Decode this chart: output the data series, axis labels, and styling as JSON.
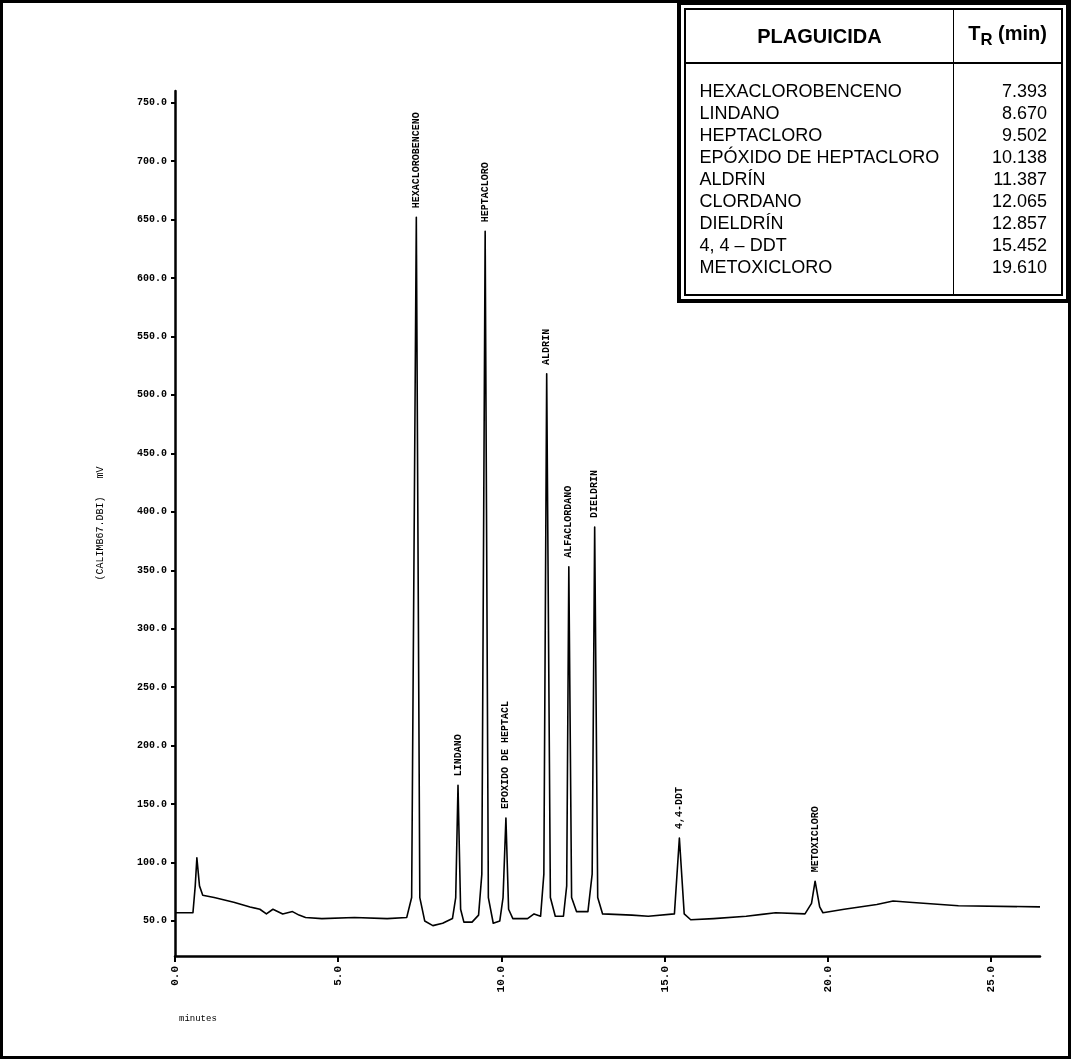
{
  "chart_data": {
    "type": "line",
    "ylabel": "(CALIMB67.DBI)   mV",
    "xlabel": "minutes",
    "x": [
      0,
      0.55,
      0.62,
      0.67,
      0.75,
      0.85,
      1.2,
      1.8,
      2.3,
      2.6,
      2.8,
      3.0,
      3.3,
      3.6,
      3.8,
      4.0,
      4.5,
      5.5,
      6.5,
      7.1,
      7.25,
      7.393,
      7.5,
      7.65,
      7.9,
      8.2,
      8.5,
      8.6,
      8.67,
      8.75,
      8.85,
      9.1,
      9.3,
      9.4,
      9.502,
      9.6,
      9.75,
      9.95,
      10.05,
      10.138,
      10.22,
      10.35,
      10.8,
      11.0,
      11.2,
      11.3,
      11.387,
      11.5,
      11.65,
      11.9,
      12.0,
      12.065,
      12.15,
      12.3,
      12.65,
      12.78,
      12.857,
      12.95,
      13.1,
      14.0,
      14.5,
      15.3,
      15.452,
      15.6,
      15.8,
      16.5,
      17.5,
      18.4,
      19.3,
      19.5,
      19.61,
      19.75,
      19.85,
      20.5,
      21.5,
      22.0,
      22.5,
      24.0,
      26.5
    ],
    "series": [
      {
        "color": "#000000",
        "values": [
          57,
          57,
          80,
          104,
          80,
          72,
          70,
          66,
          62,
          60,
          56,
          60,
          56,
          58,
          55,
          53,
          52,
          53,
          52,
          53,
          70,
          652,
          70,
          50,
          46,
          48,
          52,
          70,
          166,
          60,
          49,
          49,
          55,
          90,
          640,
          70,
          48,
          50,
          70,
          138,
          60,
          52,
          52,
          56,
          54,
          90,
          518,
          70,
          54,
          54,
          80,
          353,
          70,
          58,
          58,
          90,
          387,
          70,
          56,
          55,
          54,
          56,
          121,
          56,
          51,
          52,
          54,
          57,
          56,
          65,
          84,
          62,
          57,
          60,
          64,
          67,
          66,
          63,
          62
        ]
      }
    ],
    "xlim": [
      0,
      26.5
    ],
    "xticks": [
      {
        "value": 0,
        "label": "0.0"
      },
      {
        "value": 5,
        "label": "5.0"
      },
      {
        "value": 10,
        "label": "10.0"
      },
      {
        "value": 15,
        "label": "15.0"
      },
      {
        "value": 20,
        "label": "20.0"
      },
      {
        "value": 25,
        "label": "25.0"
      }
    ],
    "ylim": [
      20,
      760
    ],
    "yticks": [
      {
        "value": 50,
        "label": "50.0"
      },
      {
        "value": 100,
        "label": "100.0"
      },
      {
        "value": 150,
        "label": "150.0"
      },
      {
        "value": 200,
        "label": "200.0"
      },
      {
        "value": 250,
        "label": "250.0"
      },
      {
        "value": 300,
        "label": "300.0"
      },
      {
        "value": 350,
        "label": "350.0"
      },
      {
        "value": 400,
        "label": "400.0"
      },
      {
        "value": 450,
        "label": "450.0"
      },
      {
        "value": 500,
        "label": "500.0"
      },
      {
        "value": 550,
        "label": "550.0"
      },
      {
        "value": 600,
        "label": "600.0"
      },
      {
        "value": 650,
        "label": "650.0"
      },
      {
        "value": 700,
        "label": "700.0"
      },
      {
        "value": 750,
        "label": "750.0"
      }
    ],
    "annotations": [
      {
        "text": "HEXACLOROBENCENO",
        "x": 7.393,
        "y": 652
      },
      {
        "text": "LINDANO",
        "x": 8.67,
        "y": 166
      },
      {
        "text": "HEPTACLORO",
        "x": 9.502,
        "y": 640
      },
      {
        "text": "EPOXIDO DE HEPTACL",
        "x": 10.138,
        "y": 138
      },
      {
        "text": "ALDRIN",
        "x": 11.387,
        "y": 518
      },
      {
        "text": "ALFACLORDANO",
        "x": 12.065,
        "y": 353
      },
      {
        "text": "DIELDRIN",
        "x": 12.857,
        "y": 387
      },
      {
        "text": "4,4-DDT",
        "x": 15.452,
        "y": 121
      },
      {
        "text": "METOXICLORO",
        "x": 19.61,
        "y": 84
      },
      "PLAGUICIDA",
      "T$_{R}$ (min)",
      "HEXACLOROBENCENO",
      "7.393",
      "LINDANO",
      "8.670",
      "HEPTACLORO",
      "9.502",
      "EPÓXIDO DE HEPTACLORO",
      "10.138",
      "ALDRÍN",
      "11.387",
      "CLORDANO",
      "12.065",
      "DIELDRÍN",
      "12.857",
      "4, 4 – DDT",
      "15.452",
      "METOXICLORO",
      "19.610"
    ]
  }
}
